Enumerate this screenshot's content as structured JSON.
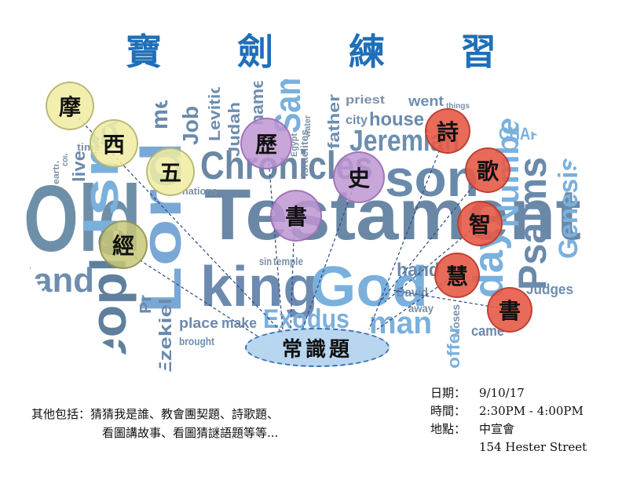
{
  "title": "寶 劍 練 習",
  "circles": {
    "mo": "摩",
    "xi": "西",
    "wu": "五",
    "jing": "經",
    "li": "歷",
    "shi_hist": "史",
    "shu_hist": "書",
    "shi_poem": "詩",
    "ge": "歌",
    "zhi": "智",
    "hui": "慧",
    "shu_wis": "書"
  },
  "general_knowledge": "常識題",
  "footer": {
    "line1": "其他包括：猜猜我是誰、教會團契題、詩歌題、",
    "line2": "看圖講故事、看圖猜謎語題等等..."
  },
  "event": {
    "date_label": "日期：",
    "date": "9/10/17",
    "time_label": "時間：",
    "time": "2:30PM - 4:00PM",
    "place_label": "地點：",
    "place": "中宣會",
    "address": "154 Hester Street"
  },
  "word_cloud": {
    "old": "Old",
    "testament": "Testament",
    "king": "king",
    "god": "God",
    "israel": "Israel",
    "lord": "Lord",
    "people": "people",
    "land": "land",
    "chronicles": "Chronicles",
    "son": "son",
    "samuel": "Samuel",
    "jeremiah": "Jeremiah",
    "numbers": "Numbers",
    "psalms": "Psalms",
    "genesis": "Genesis",
    "day": "day",
    "man": "man",
    "exodus": "Exodus",
    "ezekiel": "Ezekiel",
    "job": "Job",
    "leviticus": "Leviticus",
    "judah": "Judah",
    "men": "men",
    "house": "house",
    "city": "city",
    "went": "went",
    "priest": "priest",
    "father": "father",
    "chapter": "CHAPTER",
    "judges": "Judges",
    "hand": "hand",
    "david": "David",
    "place": "place",
    "make": "make",
    "brought": "brought",
    "live": "live",
    "time": "time",
    "nations": "nations",
    "name": "name",
    "temple": "temple",
    "moses": "Moses",
    "came": "came",
    "away": "away",
    "offer": "offer",
    "sin": "sin",
    "israelites": "Israelites",
    "egypt": "Egypt",
    "things": "things",
    "water": "water",
    "commanded": "commanded",
    "earth": "earth",
    "pr": "Pr"
  }
}
